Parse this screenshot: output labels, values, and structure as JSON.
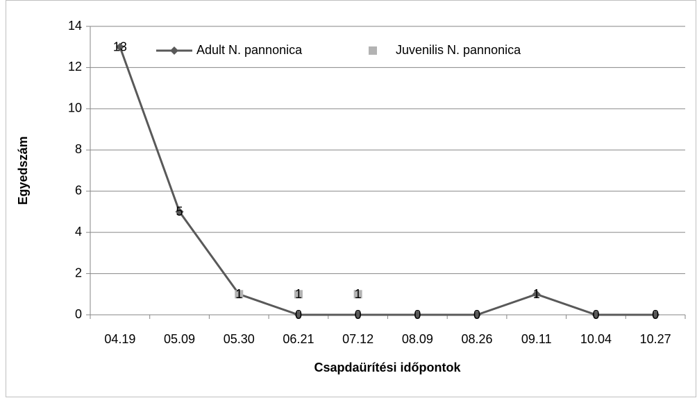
{
  "chart_data": {
    "type": "line",
    "xlabel": "Csapdaürítési időpontok",
    "ylabel": "Egyedszám",
    "categories": [
      "04.19",
      "05.09",
      "05.30",
      "06.21",
      "07.12",
      "08.09",
      "08.26",
      "09.11",
      "10.04",
      "10.27"
    ],
    "series": [
      {
        "name": "Adult N. pannonica",
        "color": "#595959",
        "line": true,
        "marker": "diamond",
        "values": [
          13,
          5,
          1,
          0,
          0,
          0,
          0,
          1,
          0,
          0
        ]
      },
      {
        "name": "Juvenilis N. pannonica",
        "color": "#b3b3b3",
        "line": false,
        "marker": "square",
        "values": [
          null,
          null,
          1,
          1,
          1,
          null,
          null,
          null,
          null,
          null
        ]
      }
    ],
    "ylim": [
      0,
      14
    ],
    "yticks": [
      0,
      2,
      4,
      6,
      8,
      10,
      12,
      14
    ],
    "grid": true,
    "legend": "top"
  }
}
